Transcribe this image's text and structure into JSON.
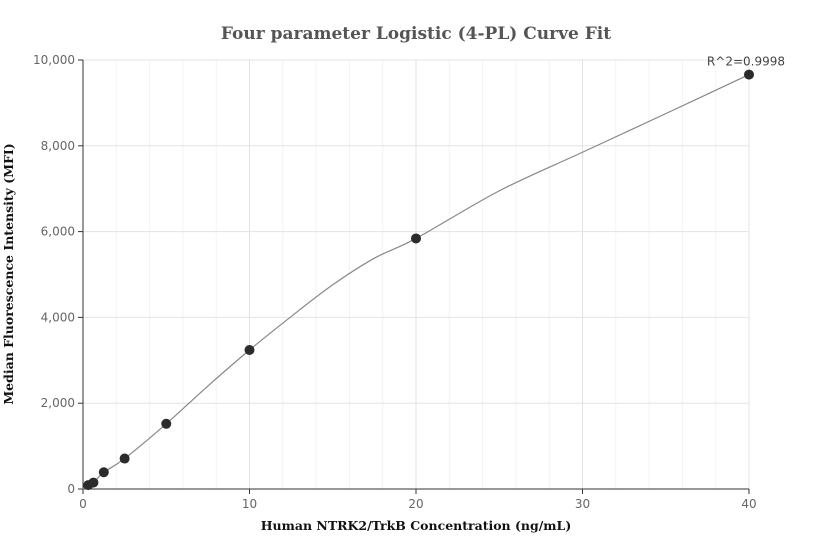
{
  "chart_data": {
    "type": "scatter",
    "title": "Four parameter Logistic (4-PL) Curve Fit",
    "xlabel": "Human NTRK2/TrkB Concentration (ng/mL)",
    "ylabel": "Median Fluorescence Intensity (MFI)",
    "xlim": [
      0,
      40
    ],
    "ylim": [
      0,
      10000
    ],
    "x_ticks": [
      0,
      10,
      20,
      30,
      40
    ],
    "x_tick_labels": [
      "0",
      "10",
      "20",
      "30",
      "40"
    ],
    "y_ticks": [
      0,
      2000,
      4000,
      6000,
      8000,
      10000
    ],
    "y_tick_labels": [
      "0",
      "2,000",
      "4,000",
      "6,000",
      "8,000",
      "10,000"
    ],
    "grid": true,
    "series": [
      {
        "x": [
          0.3125,
          0.625,
          1.25,
          2.5,
          5,
          10,
          20,
          40
        ],
        "y": [
          90,
          150,
          390,
          710,
          1520,
          3240,
          5840,
          9660
        ]
      }
    ],
    "fit_curve": {
      "x": [
        0,
        0.3125,
        0.625,
        1.25,
        2.5,
        5,
        7.5,
        10,
        12.5,
        15,
        17.5,
        20,
        25,
        30,
        35,
        40
      ],
      "y": [
        0,
        90,
        150,
        390,
        710,
        1520,
        2400,
        3240,
        4020,
        4760,
        5380,
        5840,
        6950,
        7850,
        8750,
        9660
      ]
    },
    "annotation": "R^2=0.9998"
  }
}
